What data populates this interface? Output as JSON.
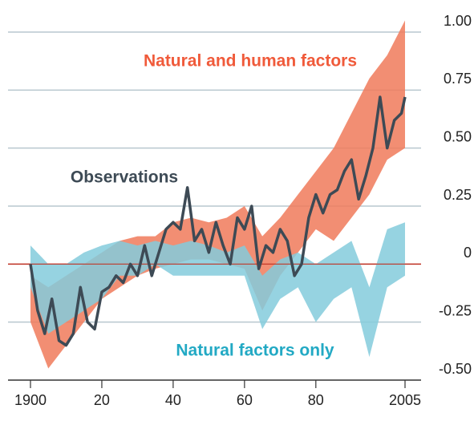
{
  "chart_data": {
    "type": "line",
    "xlim": [
      1900,
      2005
    ],
    "ylim": [
      -0.5,
      1.0
    ],
    "xticks": [
      1900,
      {
        "value": 1920,
        "label": "20"
      },
      {
        "value": 1940,
        "label": "40"
      },
      {
        "value": 1960,
        "label": "60"
      },
      {
        "value": 1980,
        "label": "80"
      },
      2005
    ],
    "yticks": [
      {
        "value": -0.5,
        "label": "-0.50"
      },
      -0.25,
      0,
      0.25,
      {
        "value": 0.5,
        "label": "0.50"
      },
      0.75,
      {
        "value": 1,
        "label": "1.00"
      }
    ],
    "grid": true,
    "series": [
      {
        "name": "Natural and human factors",
        "type": "band",
        "color": "#f07a5a",
        "label_color": "#f05a3a",
        "x": [
          1900,
          1905,
          1910,
          1915,
          1920,
          1925,
          1930,
          1935,
          1940,
          1945,
          1950,
          1955,
          1960,
          1965,
          1970,
          1975,
          1980,
          1985,
          1990,
          1995,
          2000,
          2005
        ],
        "low": [
          -0.25,
          -0.45,
          -0.35,
          -0.25,
          -0.15,
          -0.1,
          -0.05,
          -0.02,
          0.0,
          0.02,
          0.02,
          0.0,
          -0.02,
          -0.2,
          -0.05,
          0.05,
          0.15,
          0.1,
          0.2,
          0.3,
          0.45,
          0.5
        ],
        "high": [
          -0.05,
          -0.1,
          -0.05,
          0.0,
          0.05,
          0.1,
          0.12,
          0.12,
          0.18,
          0.2,
          0.18,
          0.2,
          0.25,
          0.12,
          0.2,
          0.3,
          0.4,
          0.5,
          0.65,
          0.8,
          0.9,
          1.05
        ]
      },
      {
        "name": "Natural factors only",
        "type": "band",
        "color": "#84cbdc",
        "label_color": "#22a9c4",
        "x": [
          1900,
          1905,
          1910,
          1915,
          1920,
          1925,
          1930,
          1935,
          1940,
          1945,
          1950,
          1955,
          1960,
          1965,
          1970,
          1975,
          1980,
          1985,
          1990,
          1995,
          2000,
          2005
        ],
        "low": [
          -0.1,
          -0.3,
          -0.25,
          -0.2,
          -0.15,
          -0.05,
          -0.05,
          0.0,
          -0.05,
          -0.05,
          -0.05,
          -0.05,
          -0.05,
          -0.28,
          -0.15,
          -0.1,
          -0.25,
          -0.15,
          -0.1,
          -0.4,
          -0.1,
          -0.05
        ],
        "high": [
          0.08,
          0.0,
          0.0,
          0.05,
          0.08,
          0.1,
          0.08,
          0.1,
          0.08,
          0.1,
          0.08,
          0.05,
          0.08,
          -0.05,
          0.02,
          0.05,
          0.0,
          0.05,
          0.1,
          -0.1,
          0.15,
          0.18
        ]
      },
      {
        "name": "Observations",
        "type": "line",
        "color": "#3d4a55",
        "label_color": "#3d4a55",
        "x": [
          1900,
          1902,
          1904,
          1906,
          1908,
          1910,
          1912,
          1914,
          1916,
          1918,
          1920,
          1922,
          1924,
          1926,
          1928,
          1930,
          1932,
          1934,
          1936,
          1938,
          1940,
          1942,
          1944,
          1946,
          1948,
          1950,
          1952,
          1954,
          1956,
          1958,
          1960,
          1962,
          1964,
          1966,
          1968,
          1970,
          1972,
          1974,
          1976,
          1978,
          1980,
          1982,
          1984,
          1986,
          1988,
          1990,
          1992,
          1994,
          1996,
          1998,
          2000,
          2002,
          2004,
          2005
        ],
        "values": [
          0.0,
          -0.2,
          -0.3,
          -0.15,
          -0.33,
          -0.35,
          -0.3,
          -0.1,
          -0.25,
          -0.28,
          -0.12,
          -0.1,
          -0.05,
          -0.08,
          0.0,
          -0.05,
          0.08,
          -0.05,
          0.05,
          0.15,
          0.18,
          0.15,
          0.33,
          0.1,
          0.15,
          0.05,
          0.18,
          0.08,
          0.0,
          0.2,
          0.15,
          0.25,
          -0.02,
          0.08,
          0.05,
          0.15,
          0.1,
          -0.05,
          0.0,
          0.2,
          0.3,
          0.22,
          0.3,
          0.32,
          0.4,
          0.45,
          0.28,
          0.38,
          0.5,
          0.72,
          0.5,
          0.62,
          0.65,
          0.72
        ]
      }
    ]
  }
}
